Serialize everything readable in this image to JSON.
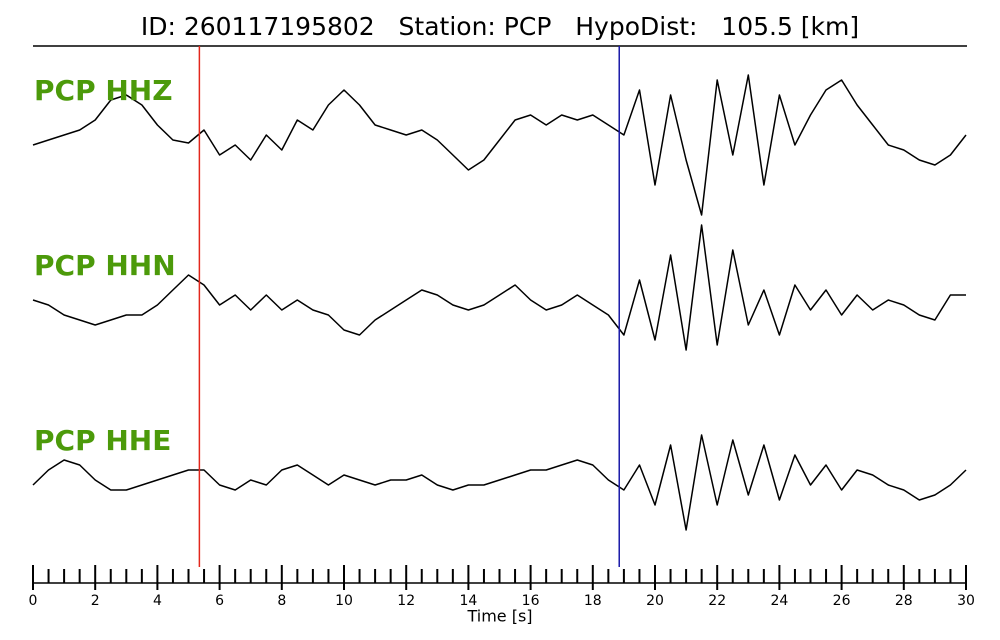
{
  "chart_data": {
    "type": "line",
    "title": "ID: 260117195802   Station: PCP   HypoDist:   105.5 [km]",
    "x_label": "Time [s]",
    "x": [
      0,
      0.5,
      1,
      1.5,
      2,
      2.5,
      3,
      3.5,
      4,
      4.5,
      5,
      5.5,
      6,
      6.5,
      7,
      7.5,
      8,
      8.5,
      9,
      9.5,
      10,
      10.5,
      11,
      11.5,
      12,
      12.5,
      13,
      13.5,
      14,
      14.5,
      15,
      15.5,
      16,
      16.5,
      17,
      17.5,
      18,
      18.5,
      19,
      19.5,
      20,
      20.5,
      21,
      21.5,
      22,
      22.5,
      23,
      23.5,
      24,
      24.5,
      25,
      25.5,
      26,
      26.5,
      27,
      27.5,
      28,
      28.5,
      29,
      29.5,
      30
    ],
    "series": [
      {
        "name": "PCP HHZ",
        "color": "#000000",
        "values": [
          -0.2,
          -0.15,
          -0.1,
          -0.05,
          0.05,
          0.25,
          0.3,
          0.2,
          0,
          -0.15,
          -0.18,
          -0.05,
          -0.3,
          -0.2,
          -0.35,
          -0.1,
          -0.25,
          0.05,
          -0.05,
          0.2,
          0.35,
          0.2,
          0,
          -0.05,
          -0.1,
          -0.05,
          -0.15,
          -0.3,
          -0.45,
          -0.35,
          -0.15,
          0.05,
          0.1,
          0,
          0.1,
          0.05,
          0.1,
          0,
          -0.1,
          0.35,
          -0.6,
          0.3,
          -0.35,
          -0.9,
          0.45,
          -0.3,
          0.5,
          -0.6,
          0.3,
          -0.2,
          0.1,
          0.35,
          0.45,
          0.2,
          0,
          -0.2,
          -0.25,
          -0.35,
          -0.4,
          -0.3,
          -0.1
        ]
      },
      {
        "name": "PCP HHN",
        "color": "#000000",
        "values": [
          0,
          -0.05,
          -0.15,
          -0.2,
          -0.25,
          -0.2,
          -0.15,
          -0.15,
          -0.05,
          0.1,
          0.25,
          0.15,
          -0.05,
          0.05,
          -0.1,
          0.05,
          -0.1,
          0,
          -0.1,
          -0.15,
          -0.3,
          -0.35,
          -0.2,
          -0.1,
          0,
          0.1,
          0.05,
          -0.05,
          -0.1,
          -0.05,
          0.05,
          0.15,
          0,
          -0.1,
          -0.05,
          0.05,
          -0.05,
          -0.15,
          -0.35,
          0.2,
          -0.4,
          0.45,
          -0.5,
          0.75,
          -0.45,
          0.5,
          -0.25,
          0.1,
          -0.35,
          0.15,
          -0.1,
          0.1,
          -0.15,
          0.05,
          -0.1,
          0,
          -0.05,
          -0.15,
          -0.2,
          0.05,
          0.05
        ]
      },
      {
        "name": "PCP HHE",
        "color": "#000000",
        "values": [
          -0.1,
          0.05,
          0.15,
          0.1,
          -0.05,
          -0.15,
          -0.15,
          -0.1,
          -0.05,
          0,
          0.05,
          0.05,
          -0.1,
          -0.15,
          -0.05,
          -0.1,
          0.05,
          0.1,
          0,
          -0.1,
          0,
          -0.05,
          -0.1,
          -0.05,
          -0.05,
          0,
          -0.1,
          -0.15,
          -0.1,
          -0.1,
          -0.05,
          0,
          0.05,
          0.05,
          0.1,
          0.15,
          0.1,
          -0.05,
          -0.15,
          0.1,
          -0.3,
          0.3,
          -0.55,
          0.4,
          -0.3,
          0.35,
          -0.2,
          0.3,
          -0.25,
          0.2,
          -0.1,
          0.1,
          -0.15,
          0.05,
          0,
          -0.1,
          -0.15,
          -0.25,
          -0.2,
          -0.1,
          0.05
        ]
      }
    ],
    "ylim": [
      -1,
      1
    ],
    "xlim": [
      0,
      30
    ],
    "xticks": [
      0,
      2,
      4,
      6,
      8,
      10,
      12,
      14,
      16,
      18,
      20,
      22,
      24,
      26,
      28,
      30
    ],
    "minor_xticks": [
      0.5,
      1,
      1.5,
      2.5,
      3,
      3.5,
      4.5,
      5,
      5.5,
      6.5,
      7,
      7.5,
      8.5,
      9,
      9.5,
      10.5,
      11,
      11.5,
      12.5,
      13,
      13.5,
      14.5,
      15,
      15.5,
      16.5,
      17,
      17.5,
      18.5,
      19,
      19.5,
      20.5,
      21,
      21.5,
      22.5,
      23,
      23.5,
      24.5,
      25,
      25.5,
      26.5,
      27,
      27.5,
      28.5,
      29,
      29.5
    ],
    "vlines": [
      {
        "x": 5.35,
        "color": "#e3271c"
      },
      {
        "x": 18.85,
        "color": "#1a1aa8"
      }
    ],
    "label_color": "#4c9a0a"
  }
}
